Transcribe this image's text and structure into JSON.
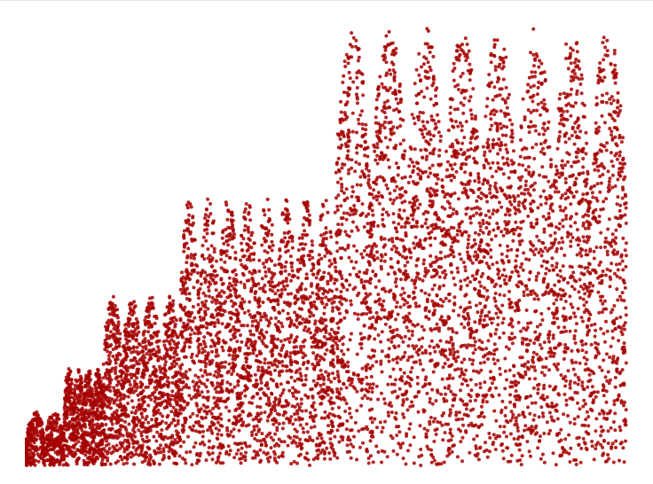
{
  "chart_data": {
    "type": "scatter",
    "title": "",
    "xlabel": "",
    "ylabel": "",
    "xlim": [
      1,
      8192
    ],
    "ylim": [
      0,
      50
    ],
    "grid": false,
    "legend": "none",
    "marker_color": "#a50000",
    "series": [
      {
        "segments": [
          {
            "range": [
              1,
              256
            ],
            "peak": 3
          },
          {
            "range": [
              256,
              512
            ],
            "peak": 6
          },
          {
            "range": [
              512,
              1024
            ],
            "peak": 11
          },
          {
            "range": [
              1024,
              2048
            ],
            "peak": 19
          },
          {
            "range": [
              2048,
              4096
            ],
            "peak": 30
          },
          {
            "range": [
              4096,
              8192
            ],
            "peak": 49
          }
        ]
      }
    ]
  }
}
